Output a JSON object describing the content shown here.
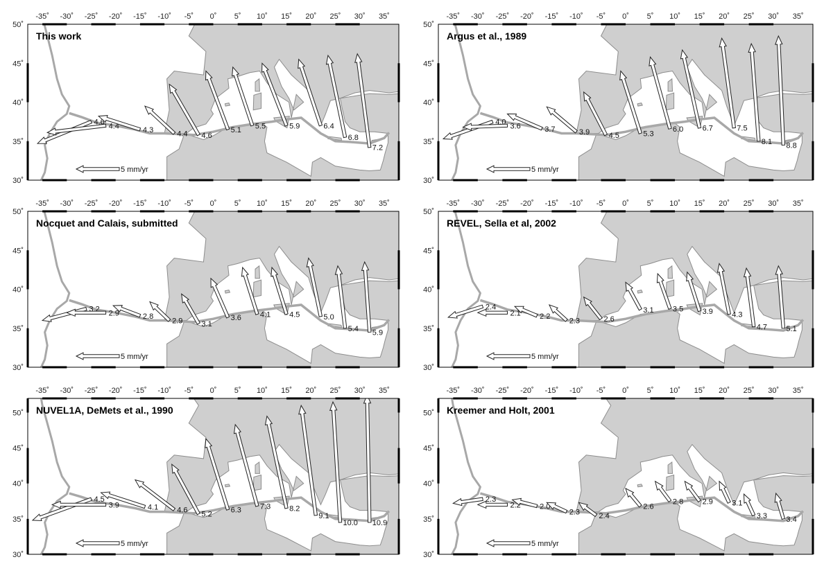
{
  "colors": {
    "land": "#cfcfcf",
    "sea": "#ffffff",
    "coast": "#8c8c8c",
    "boundary": "#a8a8a8",
    "frame": "#000000"
  },
  "x_tick_labels": [
    "-35˚",
    "-30˚",
    "-25˚",
    "-20˚",
    "-15˚",
    "-10˚",
    "-5˚",
    "0˚",
    "5˚",
    "10˚",
    "15˚",
    "20˚",
    "25˚",
    "30˚",
    "35˚"
  ],
  "scale_bar_label": "5 mm/yr",
  "panels": [
    {
      "id": "this-work",
      "title": "This work",
      "y_tick_labels": [
        "30˚",
        "35˚",
        "40˚",
        "45˚",
        "50˚"
      ],
      "lat_max": 50,
      "vectors": [
        {
          "lon": -25,
          "lat": 37.5,
          "dlon": -11,
          "dlat": -2.8,
          "label": "4.6"
        },
        {
          "lon": -22,
          "lat": 37.0,
          "dlon": -12,
          "dlat": -0.9,
          "label": "4.4"
        },
        {
          "lon": -15,
          "lat": 36.5,
          "dlon": -8.5,
          "dlat": 1.7,
          "label": "4.3"
        },
        {
          "lon": -8,
          "lat": 36.0,
          "dlon": -6,
          "dlat": 3.5,
          "label": "4.4"
        },
        {
          "lon": -3,
          "lat": 35.8,
          "dlon": -6,
          "dlat": 6.5,
          "label": "4.6"
        },
        {
          "lon": 3,
          "lat": 36.5,
          "dlon": -4.5,
          "dlat": 7.5,
          "label": "5.1"
        },
        {
          "lon": 8,
          "lat": 37.0,
          "dlon": -4,
          "dlat": 7.5,
          "label": "5.5"
        },
        {
          "lon": 15,
          "lat": 37.0,
          "dlon": -5,
          "dlat": 8.0,
          "label": "5.9"
        },
        {
          "lon": 22,
          "lat": 37.0,
          "dlon": -4.5,
          "dlat": 8.5,
          "label": "6.4"
        },
        {
          "lon": 27,
          "lat": 35.5,
          "dlon": -3.5,
          "dlat": 10.5,
          "label": "6.8"
        },
        {
          "lon": 32,
          "lat": 34.2,
          "dlon": -2.5,
          "dlat": 12,
          "label": "7.2"
        }
      ]
    },
    {
      "id": "argus",
      "title": "Argus et al., 1989",
      "y_tick_labels": [
        "30˚",
        "35˚",
        "40˚",
        "45˚",
        "50˚"
      ],
      "lat_max": 50,
      "vectors": [
        {
          "lon": -27,
          "lat": 37.5,
          "dlon": -10,
          "dlat": -2.2,
          "label": "4.0"
        },
        {
          "lon": -24,
          "lat": 37.0,
          "dlon": -9,
          "dlat": -0.2,
          "label": "3.6"
        },
        {
          "lon": -17,
          "lat": 36.6,
          "dlon": -7,
          "dlat": 1.9,
          "label": "3.7"
        },
        {
          "lon": -10,
          "lat": 36.2,
          "dlon": -6,
          "dlat": 3.2,
          "label": "3.9"
        },
        {
          "lon": -4,
          "lat": 35.8,
          "dlon": -4.5,
          "dlat": 5.5,
          "label": "4.5"
        },
        {
          "lon": 3,
          "lat": 36.0,
          "dlon": -4,
          "dlat": 8.0,
          "label": "5.3"
        },
        {
          "lon": 9,
          "lat": 36.6,
          "dlon": -4,
          "dlat": 9.2,
          "label": "6.0"
        },
        {
          "lon": 15,
          "lat": 36.7,
          "dlon": -3.5,
          "dlat": 10.0,
          "label": "6.7"
        },
        {
          "lon": 22,
          "lat": 36.7,
          "dlon": -2.5,
          "dlat": 11.5,
          "label": "7.5"
        },
        {
          "lon": 27,
          "lat": 35.0,
          "dlon": -1.5,
          "dlat": 12.5,
          "label": "8.1"
        },
        {
          "lon": 32,
          "lat": 34.5,
          "dlon": -1,
          "dlat": 14,
          "label": "8.8"
        }
      ]
    },
    {
      "id": "nocquet",
      "title": "Nocquet and Calais, submitted",
      "y_tick_labels": [
        "30˚",
        "35˚",
        "40˚",
        "45˚",
        "50˚"
      ],
      "lat_max": 50,
      "vectors": [
        {
          "lon": -26,
          "lat": 37.5,
          "dlon": -9,
          "dlat": -1.5,
          "label": "3.2"
        },
        {
          "lon": -22,
          "lat": 37.0,
          "dlon": -8,
          "dlat": 0.0,
          "label": "2.9"
        },
        {
          "lon": -15,
          "lat": 36.6,
          "dlon": -5.5,
          "dlat": 1.3,
          "label": "2.8"
        },
        {
          "lon": -9,
          "lat": 36.0,
          "dlon": -4,
          "dlat": 2.4,
          "label": "2.9"
        },
        {
          "lon": -3,
          "lat": 35.6,
          "dlon": -3.5,
          "dlat": 3.8,
          "label": "3.1"
        },
        {
          "lon": 3,
          "lat": 36.4,
          "dlon": -3.5,
          "dlat": 5.0,
          "label": "3.6"
        },
        {
          "lon": 9,
          "lat": 36.8,
          "dlon": -3,
          "dlat": 6.0,
          "label": "4.1"
        },
        {
          "lon": 15,
          "lat": 36.8,
          "dlon": -3,
          "dlat": 6.0,
          "label": "4.5"
        },
        {
          "lon": 22,
          "lat": 36.5,
          "dlon": -2.5,
          "dlat": 7.5,
          "label": "5.0"
        },
        {
          "lon": 27,
          "lat": 35.0,
          "dlon": -1.5,
          "dlat": 8.0,
          "label": "5.4"
        },
        {
          "lon": 32,
          "lat": 34.5,
          "dlon": -1,
          "dlat": 9.0,
          "label": "5.9"
        }
      ]
    },
    {
      "id": "revel",
      "title": "REVEL, Sella et al, 2002",
      "y_tick_labels": [
        "30˚",
        "35˚",
        "40˚",
        "45˚",
        "50˚"
      ],
      "lat_max": 50,
      "vectors": [
        {
          "lon": -29,
          "lat": 37.8,
          "dlon": -7,
          "dlat": -1.4,
          "label": "2.4"
        },
        {
          "lon": -24,
          "lat": 37.0,
          "dlon": -6,
          "dlat": 0.0,
          "label": "2.1"
        },
        {
          "lon": -18,
          "lat": 36.6,
          "dlon": -4.5,
          "dlat": 1.2,
          "label": "2.2"
        },
        {
          "lon": -12,
          "lat": 36.0,
          "dlon": -3.5,
          "dlat": 2.0,
          "label": "2.3"
        },
        {
          "lon": -5,
          "lat": 36.2,
          "dlon": -3.5,
          "dlat": 2.8,
          "label": "2.6"
        },
        {
          "lon": 3,
          "lat": 37.4,
          "dlon": -3,
          "dlat": 3.5,
          "label": "3.1"
        },
        {
          "lon": 9,
          "lat": 37.5,
          "dlon": -2.5,
          "dlat": 4.5,
          "label": "3.5"
        },
        {
          "lon": 15,
          "lat": 37.2,
          "dlon": -2.5,
          "dlat": 5.0,
          "label": "3.9"
        },
        {
          "lon": 21,
          "lat": 36.8,
          "dlon": -2,
          "dlat": 6.5,
          "label": "4.3"
        },
        {
          "lon": 26,
          "lat": 35.2,
          "dlon": -1.5,
          "dlat": 7.5,
          "label": "4.7"
        },
        {
          "lon": 32,
          "lat": 35.0,
          "dlon": -1,
          "dlat": 8.0,
          "label": "5.1"
        }
      ]
    },
    {
      "id": "nuvel",
      "title": "NUVEL1A, DeMets et al., 1990",
      "y_tick_labels": [
        "30˚",
        "35˚",
        "40˚",
        "45˚",
        "50˚"
      ],
      "lat_max": 52,
      "vectors": [
        {
          "lon": -25,
          "lat": 37.8,
          "dlon": -12,
          "dlat": -3.0,
          "label": "4.5"
        },
        {
          "lon": -22,
          "lat": 37.0,
          "dlon": -11,
          "dlat": 0.0,
          "label": "3.9"
        },
        {
          "lon": -14,
          "lat": 36.7,
          "dlon": -9,
          "dlat": 2.0,
          "label": "4.1"
        },
        {
          "lon": -8,
          "lat": 36.3,
          "dlon": -8,
          "dlat": 4.2,
          "label": "4.6"
        },
        {
          "lon": -3,
          "lat": 35.7,
          "dlon": -5.5,
          "dlat": 7.0,
          "label": "5.2"
        },
        {
          "lon": 3,
          "lat": 36.3,
          "dlon": -4.5,
          "dlat": 10.0,
          "label": "6.3"
        },
        {
          "lon": 9,
          "lat": 36.8,
          "dlon": -4.5,
          "dlat": 11.5,
          "label": "7.3"
        },
        {
          "lon": 15,
          "lat": 36.5,
          "dlon": -4,
          "dlat": 13.0,
          "label": "8.2"
        },
        {
          "lon": 21,
          "lat": 35.5,
          "dlon": -3,
          "dlat": 15.5,
          "label": "9.1"
        },
        {
          "lon": 26,
          "lat": 34.5,
          "dlon": -1.5,
          "dlat": 17.0,
          "label": "10.0"
        },
        {
          "lon": 32,
          "lat": 34.5,
          "dlon": -0.5,
          "dlat": 18.0,
          "label": "10.9"
        }
      ]
    },
    {
      "id": "kreemer",
      "title": "Kreemer and  Holt, 2001",
      "y_tick_labels": [
        "30˚",
        "35˚",
        "40˚",
        "45˚",
        "50˚"
      ],
      "lat_max": 52,
      "vectors": [
        {
          "lon": -29,
          "lat": 37.8,
          "dlon": -6,
          "dlat": -0.6,
          "label": "2.3"
        },
        {
          "lon": -24,
          "lat": 37.0,
          "dlon": -6,
          "dlat": 0.0,
          "label": "2.2"
        },
        {
          "lon": -18,
          "lat": 36.8,
          "dlon": -5,
          "dlat": 0.9,
          "label": "2.0"
        },
        {
          "lon": -12,
          "lat": 36.0,
          "dlon": -4,
          "dlat": 1.3,
          "label": "2.3"
        },
        {
          "lon": -6,
          "lat": 35.5,
          "dlon": -3.5,
          "dlat": 1.8,
          "label": "2.4"
        },
        {
          "lon": 3,
          "lat": 36.8,
          "dlon": -3,
          "dlat": 2.5,
          "label": "2.6"
        },
        {
          "lon": 9,
          "lat": 37.5,
          "dlon": -3,
          "dlat": 2.8,
          "label": "2.8"
        },
        {
          "lon": 15,
          "lat": 37.5,
          "dlon": -3,
          "dlat": 2.8,
          "label": "2.9"
        },
        {
          "lon": 21,
          "lat": 37.3,
          "dlon": -2,
          "dlat": 3.0,
          "label": "3.1"
        },
        {
          "lon": 26,
          "lat": 35.5,
          "dlon": -2,
          "dlat": 3.0,
          "label": "3.3"
        },
        {
          "lon": 32,
          "lat": 35.0,
          "dlon": -1.5,
          "dlat": 3.6,
          "label": "3.4"
        }
      ]
    }
  ]
}
